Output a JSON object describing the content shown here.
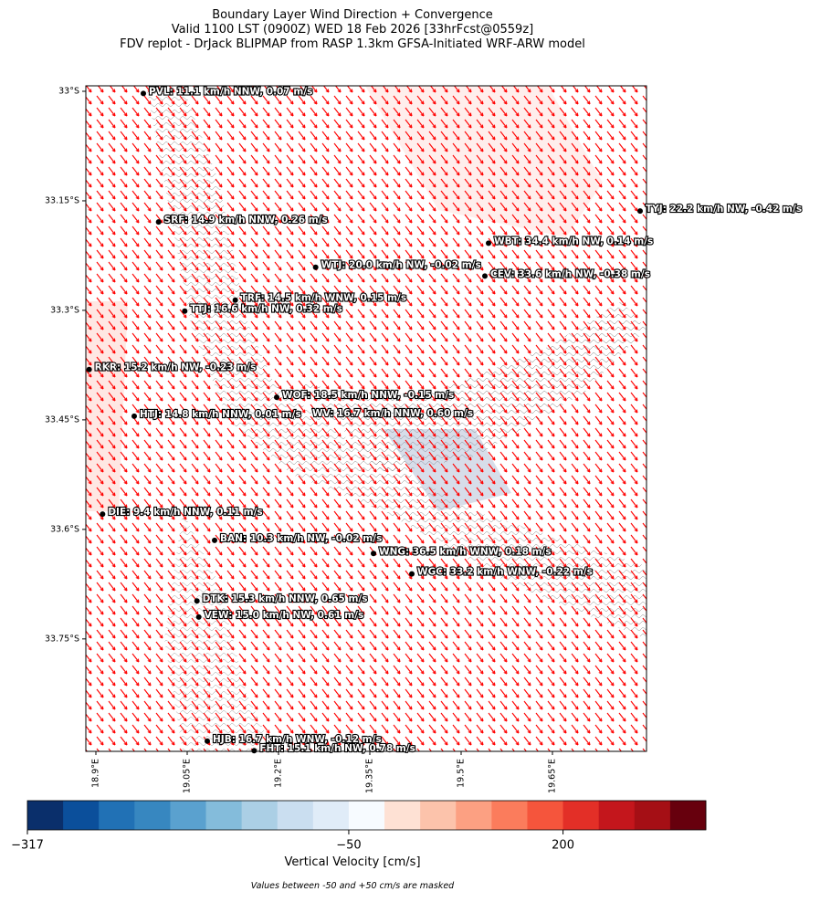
{
  "chart_data": {
    "type": "map",
    "title": [
      "Boundary Layer Wind Direction + Convergence",
      "Valid 1100 LST (0900Z) WED 18 Feb 2026 [33hrFcst@0559z]",
      "FDV replot - DrJack BLIPMAP from RASP 1.3km GFSA-Initiated WRF-ARW model"
    ],
    "xlim": [
      18.8835,
      19.8045
    ],
    "ylim": [
      -33.904,
      -32.9925
    ],
    "xticks": [
      {
        "value": 18.9,
        "label": "18.9°E"
      },
      {
        "value": 19.05,
        "label": "19.05°E"
      },
      {
        "value": 19.2,
        "label": "19.2°E"
      },
      {
        "value": 19.35,
        "label": "19.35°E"
      },
      {
        "value": 19.5,
        "label": "19.5°E"
      },
      {
        "value": 19.65,
        "label": "19.65°E"
      }
    ],
    "yticks": [
      {
        "value": -33,
        "label": "33°S"
      },
      {
        "value": -33.15,
        "label": "33.15°S"
      },
      {
        "value": -33.3,
        "label": "33.3°S"
      },
      {
        "value": -33.45,
        "label": "33.45°S"
      },
      {
        "value": -33.6,
        "label": "33.6°S"
      },
      {
        "value": -33.75,
        "label": "33.75°S"
      }
    ],
    "stations": [
      {
        "label": "PVL: 11.1 km/h NNW, 0.07 m/s",
        "lon": 18.978,
        "lat": -33.003
      },
      {
        "label": "SRF: 14.9 km/h NNW, 0.26 m/s",
        "lon": 19.003,
        "lat": -33.179
      },
      {
        "label": "TYJ: 22.2 km/h NW, -0.42 m/s",
        "lon": 19.794,
        "lat": -33.164
      },
      {
        "label": "WBT: 34.4 km/h NW, 0.14 m/s",
        "lon": 19.545,
        "lat": -33.208
      },
      {
        "label": "WTJ: 20.0 km/h NW, -0.02 m/s",
        "lon": 19.261,
        "lat": -33.241
      },
      {
        "label": "CEV: 33.6 km/h NW, -0.38 m/s",
        "lon": 19.539,
        "lat": -33.253
      },
      {
        "label": "TRF: 14.5 km/h WNW, 0.15 m/s",
        "lon": 19.129,
        "lat": -33.286
      },
      {
        "label": "TTJ: 16.6 km/h NW, 0.32 m/s",
        "lon": 19.046,
        "lat": -33.301
      },
      {
        "label": "RKR: 15.2 km/h NW, -0.23 m/s",
        "lon": 18.889,
        "lat": -33.381
      },
      {
        "label": "WOF: 18.5 km/h NNW, -0.15 m/s",
        "lon": 19.197,
        "lat": -33.419
      },
      {
        "label": "HTJ: 14.8 km/h NNW, 0.01 m/s",
        "lon": 18.963,
        "lat": -33.445
      },
      {
        "label": "WV: 16.7 km/h NNW, 0.60 m/s"
      },
      {
        "label": "DIE: 9.4 km/h NNW, 0.11 m/s",
        "lon": 18.911,
        "lat": -33.579
      },
      {
        "label": "BAN: 10.3 km/h NW, -0.02 m/s",
        "lon": 19.095,
        "lat": -33.615
      },
      {
        "label": "WNG: 36.5 km/h WNW, 0.18 m/s",
        "lon": 19.356,
        "lat": -33.633
      },
      {
        "label": "WGC: 33.2 km/h WNW, -0.22 m/s",
        "lon": 19.419,
        "lat": -33.661
      },
      {
        "label": "DTK: 15.3 km/h NNW, 0.65 m/s",
        "lon": 19.066,
        "lat": -33.698
      },
      {
        "label": "VEW: 15.0 km/h NW, 0.61 m/s",
        "lon": 19.069,
        "lat": -33.72
      },
      {
        "label": "HJB: 16.7 km/h WNW, -0.12 m/s",
        "lon": 19.083,
        "lat": -33.89
      },
      {
        "label": "FHT: 15.1 km/h NW, 0.78 m/s",
        "lon": 19.16,
        "lat": -33.903
      }
    ],
    "colorbar": {
      "label": "Vertical Velocity [cm/s]",
      "colors": [
        "#0a2f6b",
        "#0b4f9b",
        "#2171b5",
        "#3787c0",
        "#5aa1cf",
        "#84bcdb",
        "#abcfe5",
        "#cadef0",
        "#e0ecf8",
        "#f7fbff",
        "#fee1d4",
        "#fcc3ab",
        "#fca082",
        "#fb7c5c",
        "#f5553c",
        "#e32f27",
        "#c4161c",
        "#a50f15",
        "#67000d"
      ],
      "bounds": [
        -317,
        -287.3,
        -257.7,
        -228,
        -198.3,
        -168.7,
        -139,
        -109.3,
        -79.7,
        -50,
        -8.3,
        33.3,
        75,
        116.7,
        158.3,
        200,
        241.7,
        283.3,
        325,
        366.7
      ],
      "ticks": [
        {
          "value": -317,
          "label": "−317"
        },
        {
          "value": -50,
          "label": "−50"
        },
        200
      ]
    },
    "note": "Values between -50 and +50 cm/s are masked"
  }
}
